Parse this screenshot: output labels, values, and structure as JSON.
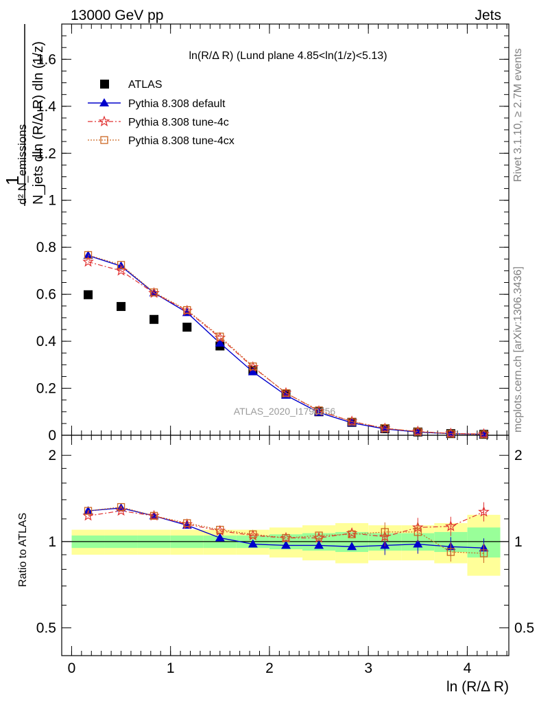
{
  "header": {
    "left": "13000 GeV pp",
    "right": "Jets"
  },
  "side_labels": {
    "rivet": "Rivet 3.1.10, ≥ 2.7M events",
    "mcplots": "mcplots.cern.ch [arXiv:1306.3436]"
  },
  "watermark": "ATLAS_2020_I1790256",
  "chart_data": [
    {
      "type": "scatter",
      "title": "ln(R/Δ R) (Lund plane 4.85<ln(1/z)<5.13)",
      "xlabel": "ln (R/Δ R)",
      "ylabel_lines": [
        "1",
        "N_jets dln (R/Δ R) dln (1/z)",
        "d² N_emissions"
      ],
      "xlim": [
        -0.1,
        4.42
      ],
      "ylim": [
        0,
        1.75
      ],
      "x_ticks": [
        "0",
        "1",
        "2",
        "3",
        "4"
      ],
      "y_ticks": [
        "0",
        "0.2",
        "0.4",
        "0.6",
        "0.8",
        "1",
        "1.2",
        "1.4",
        "1.6"
      ],
      "legend_position": "top-left",
      "x": [
        0.167,
        0.5,
        0.833,
        1.167,
        1.5,
        1.833,
        2.167,
        2.5,
        2.833,
        3.167,
        3.5,
        3.833,
        4.167
      ],
      "series": [
        {
          "name": "ATLAS",
          "color": "#000000",
          "marker": "square",
          "values": [
            0.598,
            0.548,
            0.493,
            0.46,
            0.38,
            0.275,
            0.175,
            0.1,
            0.055,
            0.028,
            0.014,
            0.007,
            0.004
          ]
        },
        {
          "name": "Pythia 8.308 default",
          "color": "#0000cc",
          "marker": "triangle",
          "line": "solid",
          "values": [
            0.765,
            0.72,
            0.606,
            0.522,
            0.392,
            0.27,
            0.17,
            0.097,
            0.053,
            0.027,
            0.0137,
            0.0067,
            0.0038
          ]
        },
        {
          "name": "Pythia 8.308 tune-4c",
          "color": "#e03030",
          "marker": "star",
          "line": "dashdot",
          "values": [
            0.738,
            0.7,
            0.605,
            0.53,
            0.415,
            0.29,
            0.18,
            0.103,
            0.059,
            0.029,
            0.016,
            0.0079,
            0.0052
          ]
        },
        {
          "name": "Pythia 8.308 tune-4cx",
          "color": "#cc6622",
          "marker": "open-square",
          "line": "dotted",
          "values": [
            0.767,
            0.725,
            0.608,
            0.533,
            0.42,
            0.293,
            0.179,
            0.106,
            0.058,
            0.03,
            0.0154,
            0.0065,
            0.0037
          ]
        }
      ]
    },
    {
      "type": "scatter",
      "title": "",
      "xlabel": "ln (R/Δ R)",
      "ylabel": "Ratio to ATLAS",
      "y_scale": "log",
      "ylim": [
        0.4,
        2.35
      ],
      "y_ticks": [
        "0.5",
        "1",
        "2"
      ],
      "x": [
        0.167,
        0.5,
        0.833,
        1.167,
        1.5,
        1.833,
        2.167,
        2.5,
        2.833,
        3.167,
        3.5,
        3.833,
        4.167
      ],
      "bands": {
        "green_half_widths": [
          0.05,
          0.05,
          0.05,
          0.05,
          0.05,
          0.05,
          0.06,
          0.07,
          0.08,
          0.07,
          0.07,
          0.08,
          0.12
        ],
        "yellow_half_widths": [
          0.1,
          0.1,
          0.1,
          0.1,
          0.1,
          0.1,
          0.12,
          0.14,
          0.16,
          0.14,
          0.14,
          0.16,
          0.24
        ]
      },
      "series": [
        {
          "name": "Pythia 8.308 default",
          "color": "#0000cc",
          "values": [
            1.28,
            1.31,
            1.23,
            1.14,
            1.03,
            0.98,
            0.97,
            0.97,
            0.96,
            0.97,
            0.98,
            0.96,
            0.95
          ]
        },
        {
          "name": "Pythia 8.308 tune-4c",
          "color": "#e03030",
          "values": [
            1.23,
            1.28,
            1.23,
            1.15,
            1.09,
            1.05,
            1.03,
            1.03,
            1.07,
            1.04,
            1.12,
            1.13,
            1.27
          ]
        },
        {
          "name": "Pythia 8.308 tune-4cx",
          "color": "#cc6622",
          "values": [
            1.28,
            1.32,
            1.23,
            1.16,
            1.1,
            1.06,
            1.03,
            1.05,
            1.06,
            1.08,
            1.08,
            0.92,
            0.91
          ]
        }
      ]
    }
  ]
}
